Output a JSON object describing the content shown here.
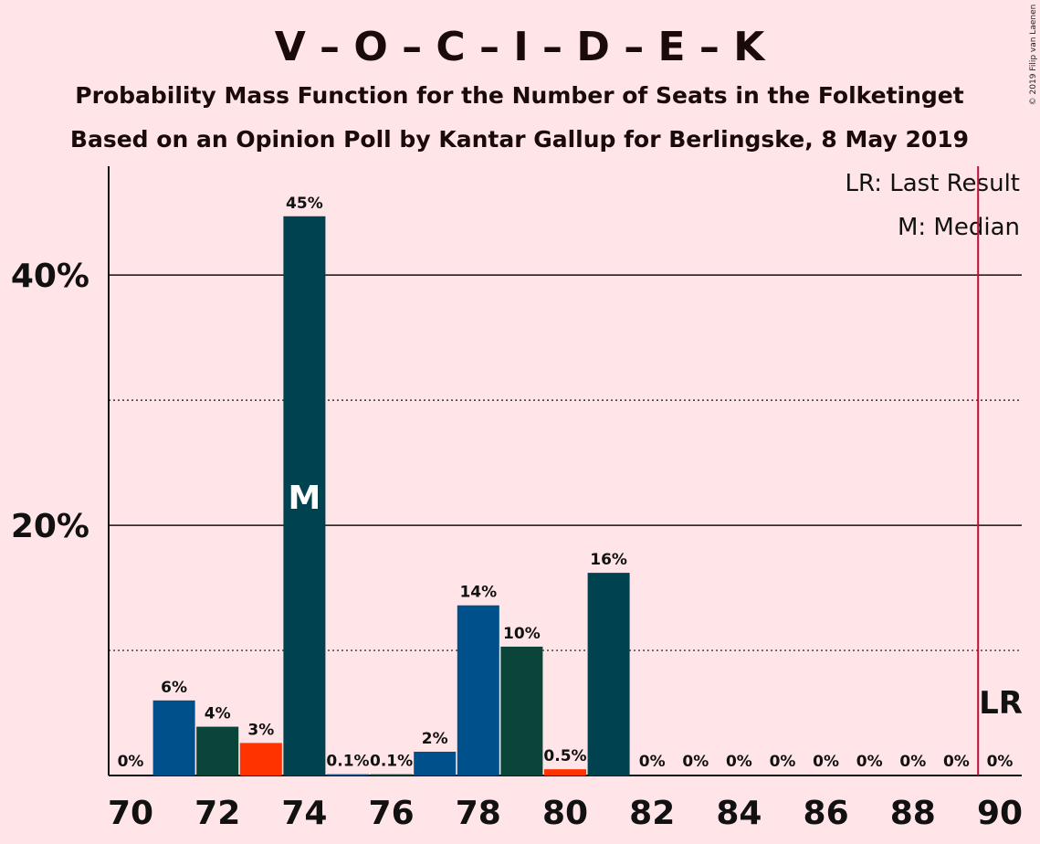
{
  "copyright": "© 2019 Filip van Laenen",
  "chart_data": {
    "type": "bar",
    "title": "V – O – C – I – D – E – K",
    "subtitle1": "Probability Mass Function for the Number of Seats in the Folketinget",
    "subtitle2": "Based on an Opinion Poll by Kantar Gallup for Berlingske, 8 May 2019",
    "xlabel": "",
    "ylabel": "",
    "xlim": [
      70,
      90
    ],
    "ylim": [
      0,
      48.7
    ],
    "x_ticks": [
      "70",
      "72",
      "74",
      "76",
      "78",
      "80",
      "82",
      "84",
      "86",
      "88",
      "90"
    ],
    "y_ticks": [
      {
        "value": 20,
        "label": "20%"
      },
      {
        "value": 40,
        "label": "40%"
      }
    ],
    "dotted_gridlines": [
      10,
      30
    ],
    "grid": true,
    "categories": [
      70,
      71,
      72,
      73,
      74,
      75,
      76,
      77,
      78,
      79,
      80,
      81,
      82,
      83,
      84,
      85,
      86,
      87,
      88,
      89,
      90
    ],
    "values": [
      0,
      6.0,
      3.9,
      2.6,
      44.7,
      0.1,
      0.1,
      1.9,
      13.6,
      10.3,
      0.5,
      16.2,
      0,
      0,
      0,
      0,
      0,
      0,
      0,
      0,
      0
    ],
    "labels": [
      "0%",
      "6%",
      "4%",
      "3%",
      "45%",
      "0.1%",
      "0.1%",
      "2%",
      "14%",
      "10%",
      "0.5%",
      "16%",
      "0%",
      "0%",
      "0%",
      "0%",
      "0%",
      "0%",
      "0%",
      "0%",
      "0%"
    ],
    "colors": [
      "#00508C",
      "#00508C",
      "#0B4539",
      "#FF3300",
      "#00424F",
      "#00508C",
      "#0B4539",
      "#00508C",
      "#00508C",
      "#0B4539",
      "#FF3300",
      "#00424F",
      "#00508C",
      "#0B4539",
      "#FF3300",
      "#00424F",
      "#00508C",
      "#0B4539",
      "#FF3300",
      "#00424F",
      "#00508C"
    ],
    "median": 74,
    "median_label": "M",
    "last_result": 89.5,
    "last_result_label": "LR",
    "last_result_color": "#C0103A",
    "legend": [
      "LR: Last Result",
      "M: Median"
    ],
    "legend_position": "top-right"
  }
}
